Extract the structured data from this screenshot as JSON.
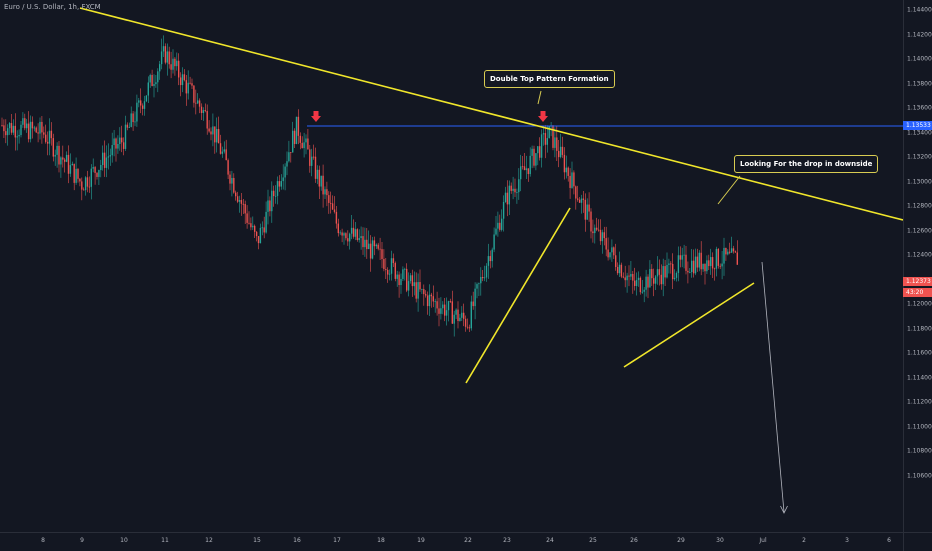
{
  "symbol_title": "Euro / U.S. Dollar, 1h, FXCM",
  "price_axis": {
    "ticks": [
      "1.14400",
      "1.14200",
      "1.14000",
      "1.13800",
      "1.13600",
      "1.13400",
      "1.13200",
      "1.13000",
      "1.12800",
      "1.12600",
      "1.12400",
      "1.12200",
      "1.12000",
      "1.11800",
      "1.11600",
      "1.11400",
      "1.11200",
      "1.11000",
      "1.10800",
      "1.10600"
    ],
    "resistance_label": "1.13533",
    "resistance_price": 1.13533,
    "current_price_label": "1.12373",
    "current_price": 1.12373,
    "countdown_label": "43:20"
  },
  "time_axis": {
    "ticks": [
      "8",
      "9",
      "10",
      "11",
      "12",
      "15",
      "16",
      "17",
      "18",
      "19",
      "22",
      "23",
      "24",
      "25",
      "26",
      "29",
      "30",
      "Jul",
      "2",
      "3",
      "6"
    ]
  },
  "annotations": {
    "double_top": "Double Top Pattern Formation",
    "downside": "Looking For the drop in downside"
  },
  "colors": {
    "background": "#131722",
    "bull": "#26a69a",
    "bear": "#ef5350",
    "trendline": "#f0e62b",
    "resistance_line": "#2962ff",
    "arrow_marker": "#f23645",
    "projection": "#b2b5be"
  },
  "chart_data": {
    "type": "candlestick",
    "title": "Euro / U.S. Dollar, 1h, FXCM",
    "ylim": [
      1.1052,
      1.1449
    ],
    "x_ticks": [
      "8",
      "9",
      "10",
      "11",
      "12",
      "15",
      "16",
      "17",
      "18",
      "19",
      "22",
      "23",
      "24",
      "25",
      "26",
      "29",
      "30",
      "Jul",
      "2",
      "3",
      "6"
    ],
    "swing_path_approx": [
      {
        "x": "8",
        "y": 1.134
      },
      {
        "x": "9",
        "y": 1.1298
      },
      {
        "x": "10",
        "y": 1.1335
      },
      {
        "x": "11",
        "y": 1.1405
      },
      {
        "x": "12",
        "y": 1.135
      },
      {
        "x": "15",
        "y": 1.125
      },
      {
        "x": "16",
        "y": 1.1345
      },
      {
        "x": "17",
        "y": 1.1265
      },
      {
        "x": "18",
        "y": 1.1238
      },
      {
        "x": "19",
        "y": 1.1208
      },
      {
        "x": "22",
        "y": 1.1185
      },
      {
        "x": "23",
        "y": 1.1288
      },
      {
        "x": "24",
        "y": 1.134
      },
      {
        "x": "25",
        "y": 1.1262
      },
      {
        "x": "26",
        "y": 1.1215
      },
      {
        "x": "29",
        "y": 1.1232
      },
      {
        "x": "30",
        "y": 1.1237
      }
    ],
    "levels": [
      {
        "name": "resistance",
        "price": 1.13533
      }
    ],
    "trendlines": [
      {
        "name": "descending",
        "from": {
          "x": "8",
          "y": 1.1446
        },
        "to": {
          "x": "6",
          "y": 1.1279
        }
      },
      {
        "name": "support-1",
        "from": {
          "x": "22",
          "y": 1.1167
        },
        "to": {
          "x": "24",
          "y": 1.1293
        }
      },
      {
        "name": "support-2",
        "from": {
          "x": "26",
          "y": 1.1191
        },
        "to": {
          "x": "30",
          "y": 1.124
        }
      }
    ]
  }
}
